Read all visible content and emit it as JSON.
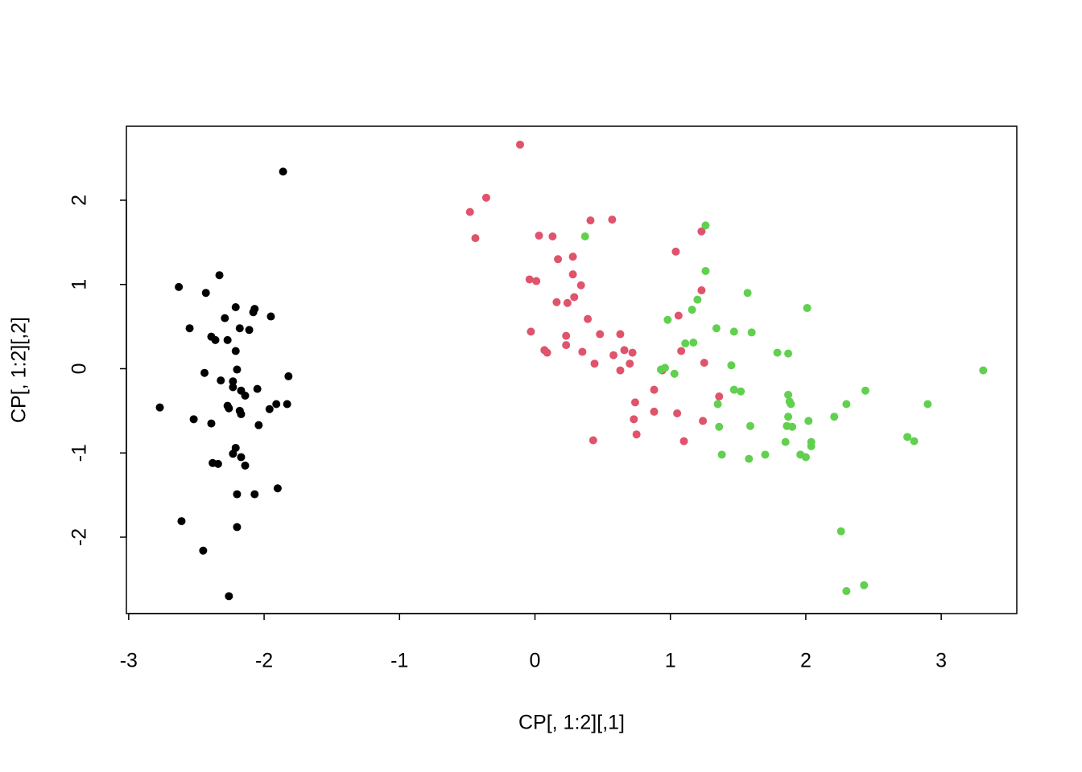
{
  "chart_data": {
    "type": "scatter",
    "x_label": "CP[, 1:2][,1]",
    "y_label": "CP[, 1:2][,2]",
    "xlim": [
      -3.017,
      3.558
    ],
    "ylim": [
      -2.907,
      2.878
    ],
    "xticks": [
      -3,
      -2,
      -1,
      0,
      1,
      2,
      3
    ],
    "yticks": [
      -2,
      -1,
      0,
      1,
      2
    ],
    "series": [
      {
        "color": "#000000",
        "x": [
          -1.86,
          -2.33,
          -2.63,
          -2.43,
          -2.21,
          -2.07,
          -2.08,
          -1.95,
          -2.55,
          -2.18,
          -2.29,
          -2.11,
          -2.39,
          -2.36,
          -2.27,
          -2.21,
          -2.44,
          -2.2,
          -2.23,
          -2.32,
          -1.82,
          -2.77,
          -2.52,
          -2.39,
          -2.27,
          -2.23,
          -2.17,
          -2.14,
          -2.05,
          -1.91,
          -1.96,
          -1.83,
          -2.26,
          -2.18,
          -2.17,
          -2.04,
          -2.21,
          -2.23,
          -2.17,
          -2.14,
          -2.38,
          -2.34,
          -1.9,
          -2.2,
          -2.07,
          -2.61,
          -2.2,
          -2.45,
          -2.26
        ],
        "values": [
          2.34,
          1.11,
          0.97,
          0.9,
          0.73,
          0.71,
          0.67,
          0.62,
          0.48,
          0.48,
          0.6,
          0.46,
          0.38,
          0.34,
          0.34,
          0.21,
          -0.05,
          -0.01,
          -0.15,
          -0.14,
          -0.09,
          -0.46,
          -0.6,
          -0.65,
          -0.44,
          -0.22,
          -0.26,
          -0.32,
          -0.24,
          -0.42,
          -0.48,
          -0.42,
          -0.47,
          -0.5,
          -0.54,
          -0.67,
          -0.94,
          -1.01,
          -1.05,
          -1.15,
          -1.12,
          -1.13,
          -1.42,
          -1.49,
          -1.49,
          -1.81,
          -1.88,
          -2.16,
          -2.7
        ]
      },
      {
        "color": "#DF536B",
        "x": [
          -0.11,
          -0.36,
          -0.48,
          -0.44,
          0.41,
          0.57,
          0.03,
          0.13,
          1.04,
          1.23,
          0.17,
          0.28,
          0.28,
          -0.04,
          0.01,
          0.34,
          1.23,
          0.16,
          0.24,
          0.29,
          0.39,
          1.06,
          -0.03,
          0.48,
          0.63,
          0.23,
          0.07,
          0.09,
          0.23,
          0.35,
          0.58,
          0.66,
          0.72,
          1.08,
          0.44,
          0.7,
          0.63,
          1.25,
          0.94,
          0.88,
          1.36,
          0.74,
          0.88,
          1.05,
          0.73,
          1.24,
          0.75,
          0.43,
          1.1
        ],
        "values": [
          2.66,
          2.03,
          1.86,
          1.55,
          1.76,
          1.77,
          1.58,
          1.57,
          1.39,
          1.63,
          1.3,
          1.33,
          1.12,
          1.06,
          1.04,
          0.99,
          0.93,
          0.79,
          0.78,
          0.85,
          0.59,
          0.63,
          0.44,
          0.41,
          0.41,
          0.39,
          0.22,
          0.19,
          0.28,
          0.2,
          0.16,
          0.22,
          0.19,
          0.21,
          0.06,
          0.06,
          -0.02,
          0.07,
          -0.02,
          -0.25,
          -0.33,
          -0.4,
          -0.51,
          -0.53,
          -0.6,
          -0.62,
          -0.78,
          -0.85,
          -0.86
        ]
      },
      {
        "color": "#61D04F",
        "x": [
          1.26,
          0.37,
          1.26,
          1.57,
          1.2,
          2.01,
          1.16,
          0.98,
          1.34,
          1.47,
          1.6,
          1.11,
          1.17,
          1.79,
          1.87,
          1.45,
          0.96,
          0.93,
          1.03,
          3.31,
          2.44,
          1.47,
          1.52,
          1.87,
          1.35,
          1.88,
          1.89,
          2.3,
          2.9,
          1.87,
          2.21,
          1.36,
          1.59,
          1.86,
          1.9,
          2.02,
          2.75,
          2.8,
          1.85,
          2.04,
          2.04,
          1.38,
          1.7,
          1.58,
          1.96,
          2.0,
          2.26,
          2.43,
          2.3
        ],
        "values": [
          1.7,
          1.57,
          1.16,
          0.9,
          0.82,
          0.72,
          0.7,
          0.58,
          0.48,
          0.44,
          0.43,
          0.3,
          0.31,
          0.19,
          0.18,
          0.04,
          0.01,
          -0.01,
          -0.06,
          -0.02,
          -0.26,
          -0.25,
          -0.27,
          -0.31,
          -0.42,
          -0.39,
          -0.42,
          -0.42,
          -0.42,
          -0.57,
          -0.57,
          -0.69,
          -0.68,
          -0.68,
          -0.69,
          -0.62,
          -0.81,
          -0.86,
          -0.87,
          -0.87,
          -0.92,
          -1.02,
          -1.02,
          -1.07,
          -1.02,
          -1.05,
          -1.93,
          -2.57,
          -2.64
        ]
      }
    ]
  }
}
